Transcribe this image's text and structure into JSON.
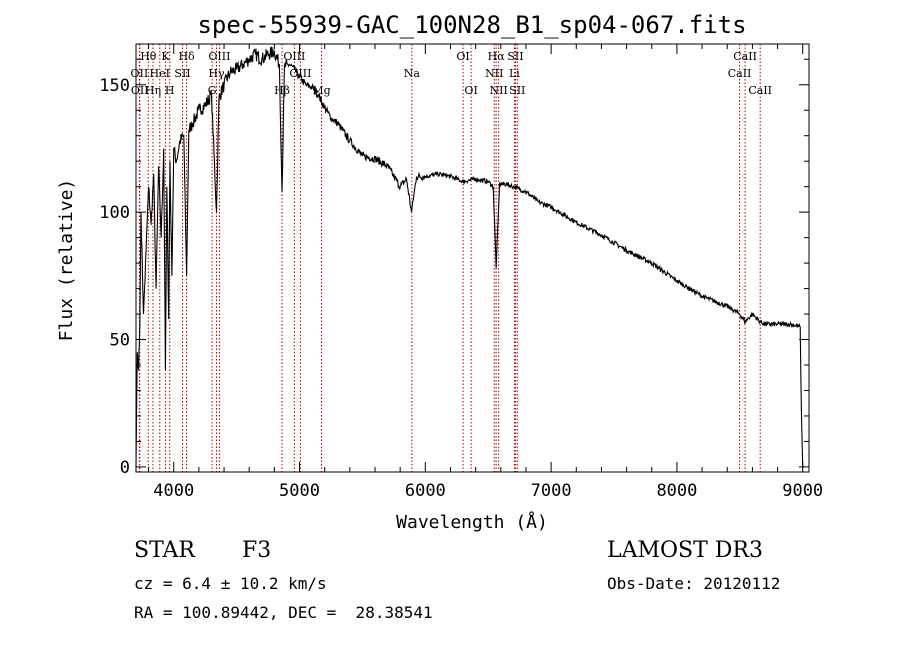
{
  "chart_data": {
    "type": "line",
    "title": "spec-55939-GAC_100N28_B1_sp04-067.fits",
    "xlabel": "Wavelength (Å)",
    "ylabel": "Flux (relative)",
    "xlim": [
      3700,
      9050
    ],
    "ylim": [
      -2,
      166
    ],
    "x_ticks": [
      4000,
      5000,
      6000,
      7000,
      8000,
      9000
    ],
    "y_ticks": [
      0,
      50,
      100,
      150
    ],
    "series": [
      {
        "name": "spectrum",
        "x": [
          3700,
          3710,
          3720,
          3730,
          3740,
          3760,
          3780,
          3800,
          3820,
          3840,
          3860,
          3880,
          3900,
          3920,
          3934,
          3945,
          3960,
          3970,
          3985,
          4000,
          4020,
          4050,
          4080,
          4102,
          4120,
          4150,
          4200,
          4250,
          4300,
          4340,
          4360,
          4400,
          4450,
          4500,
          4550,
          4600,
          4650,
          4700,
          4750,
          4800,
          4840,
          4861,
          4880,
          4920,
          4960,
          5000,
          5050,
          5100,
          5150,
          5200,
          5250,
          5300,
          5400,
          5500,
          5600,
          5700,
          5800,
          5850,
          5890,
          5930,
          6000,
          6100,
          6200,
          6300,
          6400,
          6500,
          6540,
          6563,
          6590,
          6650,
          6700,
          6800,
          6900,
          7000,
          7200,
          7400,
          7600,
          7800,
          8000,
          8200,
          8400,
          8498,
          8542,
          8600,
          8662,
          8700,
          8800,
          8900,
          8980,
          8990,
          9000,
          9010
        ],
        "y": [
          0,
          45,
          38,
          55,
          100,
          60,
          85,
          110,
          95,
          115,
          70,
          118,
          90,
          125,
          38,
          110,
          58,
          120,
          75,
          125,
          120,
          128,
          130,
          75,
          132,
          135,
          140,
          142,
          146,
          100,
          145,
          150,
          155,
          156,
          158,
          160,
          162,
          160,
          162,
          163,
          158,
          108,
          157,
          158,
          156,
          153,
          150,
          149,
          146,
          141,
          137,
          135,
          128,
          122,
          121,
          118,
          110,
          113,
          100,
          114,
          114,
          115,
          114,
          112,
          113,
          112,
          110,
          78,
          111,
          111,
          110,
          108,
          104,
          102,
          96,
          91,
          85,
          80,
          73,
          67,
          63,
          60,
          57,
          60,
          57,
          56,
          56,
          56,
          55,
          20,
          0,
          0
        ]
      }
    ],
    "lines": [
      {
        "name": "Hθ",
        "wavelength": 3798,
        "row": 0
      },
      {
        "name": "OII",
        "wavelength": 3727,
        "row": 1
      },
      {
        "name": "OII",
        "wavelength": 3730,
        "row": 2
      },
      {
        "name": "Hη",
        "wavelength": 3835,
        "row": 2
      },
      {
        "name": "HeI",
        "wavelength": 3889,
        "row": 1
      },
      {
        "name": "K",
        "wavelength": 3934,
        "row": 0
      },
      {
        "name": "SII",
        "wavelength": 4070,
        "row": 1
      },
      {
        "name": "H",
        "wavelength": 3968,
        "row": 2
      },
      {
        "name": "Hδ",
        "wavelength": 4102,
        "row": 0
      },
      {
        "name": "OIII",
        "wavelength": 4363,
        "row": 0
      },
      {
        "name": "Hγ",
        "wavelength": 4340,
        "row": 1
      },
      {
        "name": "G",
        "wavelength": 4305,
        "row": 2
      },
      {
        "name": "Hβ",
        "wavelength": 4861,
        "row": 2
      },
      {
        "name": "OIII",
        "wavelength": 4959,
        "row": 0
      },
      {
        "name": "OIII",
        "wavelength": 5007,
        "row": 1
      },
      {
        "name": "Mg",
        "wavelength": 5175,
        "row": 2
      },
      {
        "name": "Na",
        "wavelength": 5893,
        "row": 1
      },
      {
        "name": "OI",
        "wavelength": 6300,
        "row": 0
      },
      {
        "name": "OI",
        "wavelength": 6364,
        "row": 2
      },
      {
        "name": "Hα",
        "wavelength": 6563,
        "row": 0
      },
      {
        "name": "NII",
        "wavelength": 6548,
        "row": 1
      },
      {
        "name": "NII",
        "wavelength": 6583,
        "row": 2
      },
      {
        "name": "SII",
        "wavelength": 6717,
        "row": 0
      },
      {
        "name": "Li",
        "wavelength": 6708,
        "row": 1
      },
      {
        "name": "SII",
        "wavelength": 6731,
        "row": 2
      },
      {
        "name": "CaII",
        "wavelength": 8542,
        "row": 0
      },
      {
        "name": "CaII",
        "wavelength": 8498,
        "row": 1
      },
      {
        "name": "CaII",
        "wavelength": 8662,
        "row": 2
      }
    ]
  },
  "info": {
    "class_label": "STAR",
    "subclass": "F3",
    "survey": "LAMOST DR3",
    "cz": "cz = 6.4 ± 10.2 km/s",
    "obs_date": "Obs-Date: 20120112",
    "coords": "RA = 100.89442, DEC =  28.38541"
  },
  "colors": {
    "line_marker": "#b00000",
    "spectrum": "#000000",
    "background": "#ffffff"
  }
}
